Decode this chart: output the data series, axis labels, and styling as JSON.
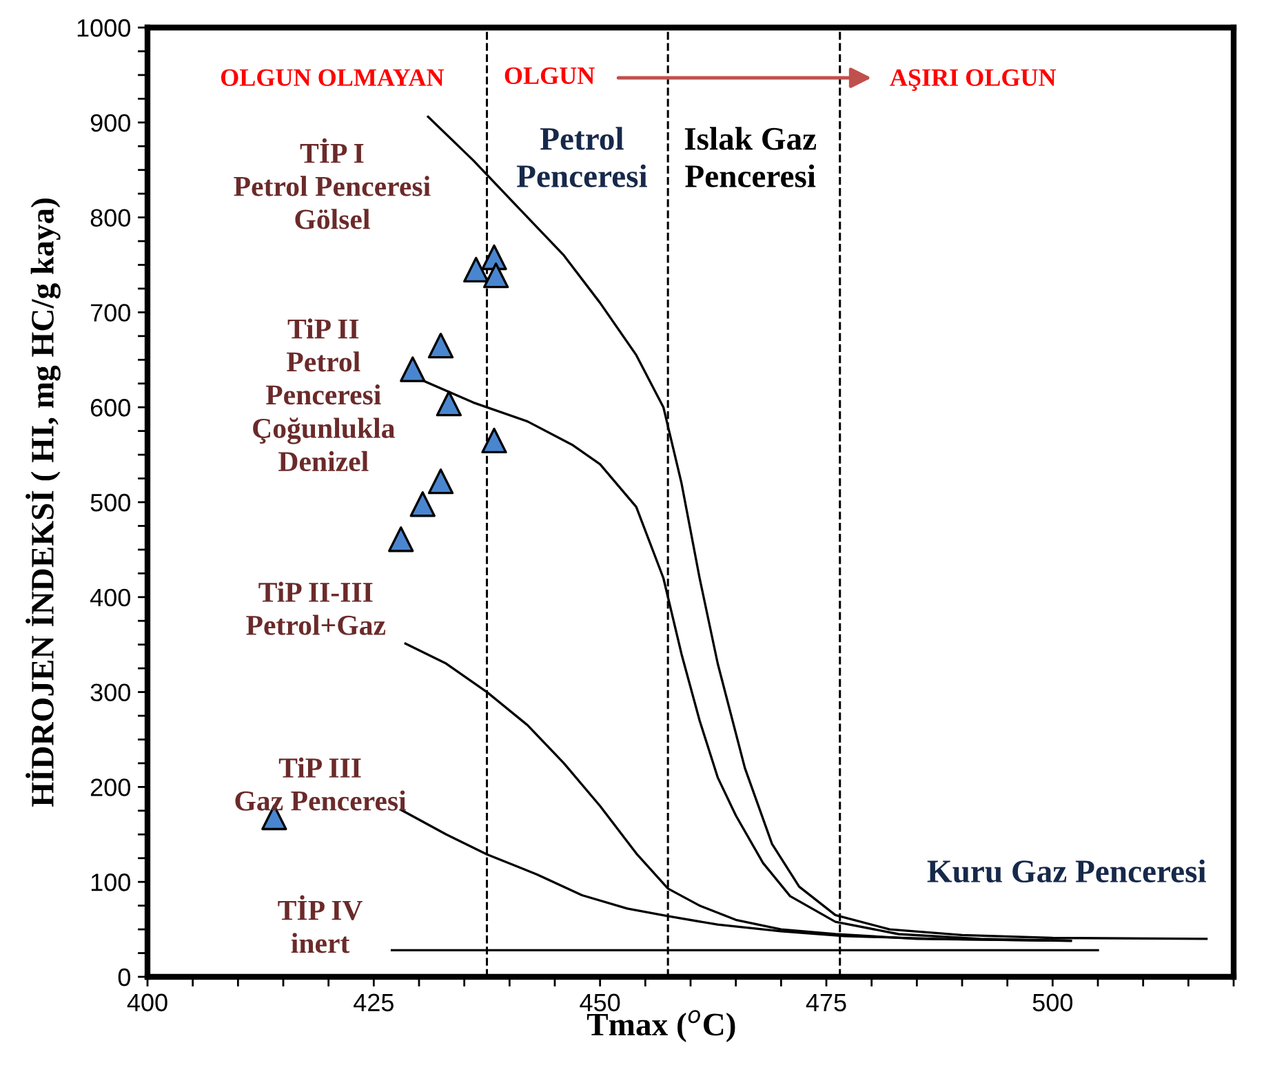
{
  "chart_data": {
    "type": "scatter",
    "xlabel": "Tmax ($^{o}$C)",
    "ylabel": "HİDROJEN İNDEKSİ ( HI, mg HC/g kaya)",
    "xlim": [
      400,
      520
    ],
    "ylim": [
      0,
      1000
    ],
    "xticks": [
      400,
      {
        "value": 405,
        "label": null
      },
      {
        "value": 410,
        "label": null
      },
      {
        "value": 415,
        "label": null
      },
      {
        "value": 420,
        "label": null
      },
      425,
      {
        "value": 430,
        "label": null
      },
      {
        "value": 435,
        "label": null
      },
      {
        "value": 440,
        "label": null
      },
      {
        "value": 445,
        "label": null
      },
      450,
      {
        "value": 455,
        "label": null
      },
      {
        "value": 460,
        "label": null
      },
      {
        "value": 465,
        "label": null
      },
      {
        "value": 470,
        "label": null
      },
      475,
      {
        "value": 480,
        "label": null
      },
      {
        "value": 485,
        "label": null
      },
      {
        "value": 490,
        "label": null
      },
      {
        "value": 495,
        "label": null
      },
      500,
      {
        "value": 505,
        "label": null
      },
      {
        "value": 510,
        "label": null
      },
      {
        "value": 515,
        "label": null
      },
      {
        "value": 520,
        "label": null
      }
    ],
    "yticks": [
      0,
      {
        "value": 25,
        "label": null
      },
      {
        "value": 50,
        "label": null
      },
      {
        "value": 75,
        "label": null
      },
      100,
      {
        "value": 125,
        "label": null
      },
      {
        "value": 150,
        "label": null
      },
      {
        "value": 175,
        "label": null
      },
      200,
      {
        "value": 225,
        "label": null
      },
      {
        "value": 250,
        "label": null
      },
      {
        "value": 275,
        "label": null
      },
      300,
      {
        "value": 325,
        "label": null
      },
      {
        "value": 350,
        "label": null
      },
      {
        "value": 375,
        "label": null
      },
      400,
      {
        "value": 425,
        "label": null
      },
      {
        "value": 450,
        "label": null
      },
      {
        "value": 475,
        "label": null
      },
      500,
      {
        "value": 525,
        "label": null
      },
      {
        "value": 550,
        "label": null
      },
      {
        "value": 575,
        "label": null
      },
      600,
      {
        "value": 625,
        "label": null
      },
      {
        "value": 650,
        "label": null
      },
      {
        "value": 675,
        "label": null
      },
      700,
      {
        "value": 725,
        "label": null
      },
      {
        "value": 750,
        "label": null
      },
      {
        "value": 775,
        "label": null
      },
      800,
      {
        "value": 825,
        "label": null
      },
      {
        "value": 850,
        "label": null
      },
      {
        "value": 875,
        "label": null
      },
      900,
      {
        "value": 925,
        "label": null
      },
      {
        "value": 950,
        "label": null
      },
      {
        "value": 975,
        "label": null
      },
      1000
    ],
    "grid": false,
    "legend": false,
    "series": [
      {
        "type": "line",
        "color": "#000000",
        "line_style": "solid",
        "marker": "none",
        "x": [
          431,
          436,
          441,
          446,
          450,
          454,
          457,
          459,
          461,
          463,
          466,
          469,
          472,
          476,
          482,
          490,
          500,
          517
        ],
        "values": [
          906,
          860,
          810,
          760,
          710,
          655,
          600,
          520,
          420,
          330,
          220,
          140,
          95,
          65,
          50,
          44,
          41,
          40
        ]
      },
      {
        "type": "line",
        "color": "#000000",
        "line_style": "solid",
        "marker": "none",
        "x": [
          429,
          436,
          442,
          447,
          450,
          454,
          457,
          459,
          461,
          463,
          465,
          468,
          471,
          476,
          483,
          492,
          502
        ],
        "values": [
          634,
          605,
          585,
          560,
          540,
          495,
          420,
          340,
          270,
          210,
          170,
          120,
          85,
          58,
          45,
          40,
          38
        ]
      },
      {
        "type": "line",
        "color": "#000000",
        "line_style": "solid",
        "marker": "none",
        "x": [
          428.5,
          433,
          437.5,
          442,
          446,
          450,
          454,
          457.5,
          461,
          465,
          470,
          476,
          485,
          502
        ],
        "values": [
          351,
          330,
          300,
          265,
          225,
          180,
          130,
          93,
          75,
          60,
          50,
          45,
          40,
          38
        ]
      },
      {
        "type": "line",
        "color": "#000000",
        "line_style": "solid",
        "marker": "none",
        "x": [
          428,
          433,
          437.5,
          443,
          448,
          453,
          457.5,
          463,
          470,
          477,
          487,
          502
        ],
        "values": [
          176,
          150,
          129,
          108,
          86,
          72,
          64,
          55,
          48,
          43,
          40,
          38
        ]
      },
      {
        "type": "line",
        "color": "#000000",
        "line_style": "solid",
        "marker": "none",
        "x": [
          427,
          505
        ],
        "values": [
          28,
          28
        ]
      },
      {
        "color": "#4a86d0",
        "marker": "triangle",
        "x": [
          414,
          428,
          430.4,
          432.4,
          429.3,
          432.4,
          433.3,
          438.3,
          436.3,
          438.3,
          438.5
        ],
        "values": [
          168,
          461,
          498,
          522,
          640,
          665,
          604,
          565,
          745,
          758,
          739
        ]
      }
    ],
    "ref_lines": [
      {
        "axis": "x",
        "value": 437.5,
        "color": "#000000",
        "line_style": "dashed"
      },
      {
        "axis": "x",
        "value": 457.5,
        "color": "#000000",
        "line_style": "dashed"
      },
      {
        "axis": "x",
        "value": 476.5,
        "color": "#000000",
        "line_style": "dashed"
      }
    ],
    "annotations": [
      "OLGUN OLMAYAN",
      "OLGUN",
      "AŞIRI OLGUN",
      "Petrol\nPenceresi",
      "Islak Gaz\nPenceresi",
      "Kuru Gaz Penceresi",
      "TİP I\nPetrol Penceresi\nGölsel",
      "TiP II\nPetrol\nPenceresi\nÇoğunlukla\nDenizel",
      "TiP II-III\nPetrol+Gaz",
      "TiP III\nGaz Penceresi",
      "TİP IV\ninert"
    ]
  }
}
